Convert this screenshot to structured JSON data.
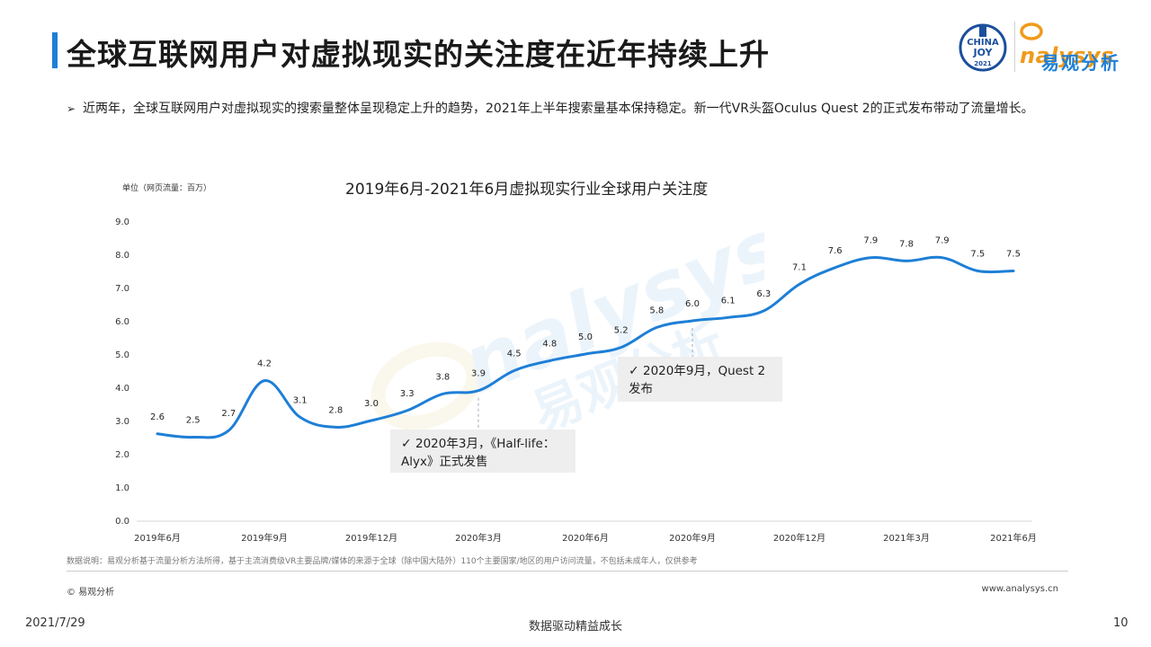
{
  "header": {
    "title": "全球互联网用户对虚拟现实的关注度在近年持续上升",
    "logo_cj_text": "CHINA JOY 2021",
    "logo_brand": "nalysys",
    "logo_brand_cn": "易观分析"
  },
  "bullet": {
    "mark": "➢",
    "text": "近两年，全球互联网用户对虚拟现实的搜索量整体呈现稳定上升的趋势，2021年上半年搜索量基本保持稳定。新一代VR头盔Oculus  Quest  2的正式发布带动了流量增长。"
  },
  "chart_data": {
    "type": "line",
    "title": "2019年6月-2021年6月虚拟现实行业全球用户关注度",
    "unit_label": "单位（网页流量：百万）",
    "ylim": [
      0,
      9
    ],
    "y_ticks": [
      "0.0",
      "1.0",
      "2.0",
      "3.0",
      "4.0",
      "5.0",
      "6.0",
      "7.0",
      "8.0",
      "9.0"
    ],
    "x_tick_labels": [
      "2019年6月",
      "2019年9月",
      "2019年12月",
      "2020年3月",
      "2020年6月",
      "2020年9月",
      "2020年12月",
      "2021年3月",
      "2021年6月"
    ],
    "categories": [
      "2019-06",
      "2019-07",
      "2019-08",
      "2019-09",
      "2019-10",
      "2019-11",
      "2019-12",
      "2020-01",
      "2020-02",
      "2020-03",
      "2020-04",
      "2020-05",
      "2020-06",
      "2020-07",
      "2020-08",
      "2020-09",
      "2020-10",
      "2020-11",
      "2020-12",
      "2021-01",
      "2021-02",
      "2021-03",
      "2021-04",
      "2021-05",
      "2021-06"
    ],
    "series": [
      {
        "values": [
          2.6,
          2.5,
          2.7,
          4.2,
          3.1,
          2.8,
          3.0,
          3.3,
          3.8,
          3.9,
          4.5,
          4.8,
          5.0,
          5.2,
          5.8,
          6.0,
          6.1,
          6.3,
          7.1,
          7.6,
          7.9,
          7.8,
          7.9,
          7.5,
          7.5
        ]
      }
    ],
    "data_labels": [
      "2.6",
      "2.5",
      "2.7",
      "4.2",
      "3.1",
      "2.8",
      "3.0",
      "3.3",
      "3.8",
      "3.9",
      "4.5",
      "4.8",
      "5.0",
      "5.2",
      "5.8",
      "6.0",
      "6.1",
      "6.3",
      "7.1",
      "7.6",
      "7.9",
      "7.8",
      "7.9",
      "7.5",
      "7.5"
    ],
    "line_color": "#1e7fd6",
    "annotations": [
      {
        "point_index": 9,
        "check": "✓",
        "lines": [
          "2020年3月，《Half-life：",
          "Alyx》正式发售"
        ]
      },
      {
        "point_index": 15,
        "check": "✓",
        "lines": [
          "2020年9月，Quest 2",
          "发布"
        ]
      }
    ],
    "grid": false
  },
  "footer": {
    "note": "数据说明：易观分析基于流量分析方法所得，基于主流消费级VR主要品牌/媒体的来源于全球（除中国大陆外）110个主要国家/地区的用户访问流量，不包括未成年人，仅供参考",
    "copyright": "© 易观分析",
    "site": "www.analysys.cn",
    "date": "2021/7/29",
    "slogan": "数据驱动精益成长",
    "page": "10"
  }
}
